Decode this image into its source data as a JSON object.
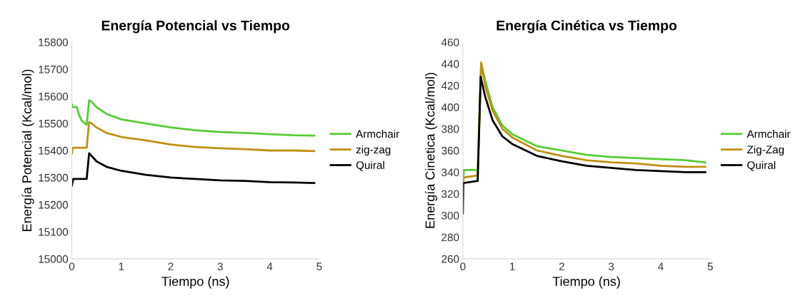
{
  "chart_data": [
    {
      "type": "line",
      "title": "Energía Potencial vs Tiempo",
      "xlabel": "Tiempo (ns)",
      "ylabel": "Energía Potencial (Kcal/mol)",
      "xlim": [
        0,
        5
      ],
      "xticks": [
        0,
        1,
        2,
        3,
        4,
        5
      ],
      "ylim": [
        15000,
        15800
      ],
      "yticks": [
        15000,
        15100,
        15200,
        15300,
        15400,
        15500,
        15600,
        15700,
        15800
      ],
      "grid": false,
      "legend": "right",
      "marker": "none",
      "line_style": "solid",
      "series": [
        {
          "name": "Armchair",
          "color": "#55cc33",
          "x": [
            0,
            0.02,
            0.1,
            0.15,
            0.2,
            0.3,
            0.35,
            0.4,
            0.5,
            0.7,
            1,
            1.5,
            2,
            2.5,
            3,
            3.5,
            4,
            4.5,
            4.9
          ],
          "values": [
            15570,
            15560,
            15560,
            15530,
            15510,
            15495,
            15585,
            15580,
            15560,
            15535,
            15515,
            15500,
            15485,
            15475,
            15468,
            15465,
            15460,
            15456,
            15455
          ]
        },
        {
          "name": "zig-zag",
          "color": "#c09010",
          "x": [
            0,
            0.02,
            0.3,
            0.35,
            0.4,
            0.5,
            0.7,
            1,
            1.5,
            2,
            2.5,
            3,
            3.5,
            4,
            4.5,
            4.9
          ],
          "values": [
            15390,
            15410,
            15410,
            15505,
            15500,
            15485,
            15465,
            15450,
            15437,
            15422,
            15413,
            15408,
            15405,
            15400,
            15400,
            15398
          ]
        },
        {
          "name": "Quiral",
          "color": "#000000",
          "x": [
            0,
            0.03,
            0.3,
            0.35,
            0.4,
            0.5,
            0.7,
            1,
            1.5,
            2,
            2.5,
            3,
            3.5,
            4,
            4.5,
            4.9
          ],
          "values": [
            15270,
            15295,
            15295,
            15390,
            15380,
            15360,
            15340,
            15325,
            15310,
            15300,
            15295,
            15290,
            15288,
            15283,
            15282,
            15280
          ]
        }
      ]
    },
    {
      "type": "line",
      "title": "Energía Cinética vs Tiempo",
      "xlabel": "Tiempo (ns)",
      "ylabel": "Energía Cinetica (Kcal/mol)",
      "xlim": [
        0,
        5
      ],
      "xticks": [
        0,
        1,
        2,
        3,
        4,
        5
      ],
      "ylim": [
        260,
        460
      ],
      "yticks": [
        260,
        280,
        300,
        320,
        340,
        360,
        380,
        400,
        420,
        440,
        460
      ],
      "grid": false,
      "legend": "right",
      "marker": "none",
      "line_style": "solid",
      "series": [
        {
          "name": "Armchair",
          "color": "#55cc33",
          "x": [
            0,
            0.02,
            0.3,
            0.37,
            0.45,
            0.6,
            0.8,
            1,
            1.5,
            2,
            2.5,
            3,
            3.5,
            4,
            4.5,
            4.9
          ],
          "values": [
            330,
            342,
            342,
            441,
            425,
            400,
            383,
            375,
            364,
            360,
            356,
            354,
            353,
            352,
            351,
            349
          ]
        },
        {
          "name": "Zig-Zag",
          "color": "#c09010",
          "x": [
            0,
            0.02,
            0.3,
            0.37,
            0.45,
            0.6,
            0.8,
            1,
            1.5,
            2,
            2.5,
            3,
            3.5,
            4,
            4.5,
            4.9
          ],
          "values": [
            330,
            335,
            337,
            441,
            420,
            397,
            380,
            372,
            360,
            355,
            351,
            349,
            348,
            346,
            345,
            345
          ]
        },
        {
          "name": "Quiral",
          "color": "#000000",
          "x": [
            0,
            0.01,
            0.3,
            0.36,
            0.45,
            0.6,
            0.8,
            1,
            1.5,
            2,
            2.5,
            3,
            3.5,
            4,
            4.5,
            4.9
          ],
          "values": [
            302,
            330,
            332,
            428,
            410,
            388,
            373,
            366,
            355,
            350,
            346,
            344,
            342,
            341,
            340,
            340
          ]
        }
      ]
    }
  ]
}
